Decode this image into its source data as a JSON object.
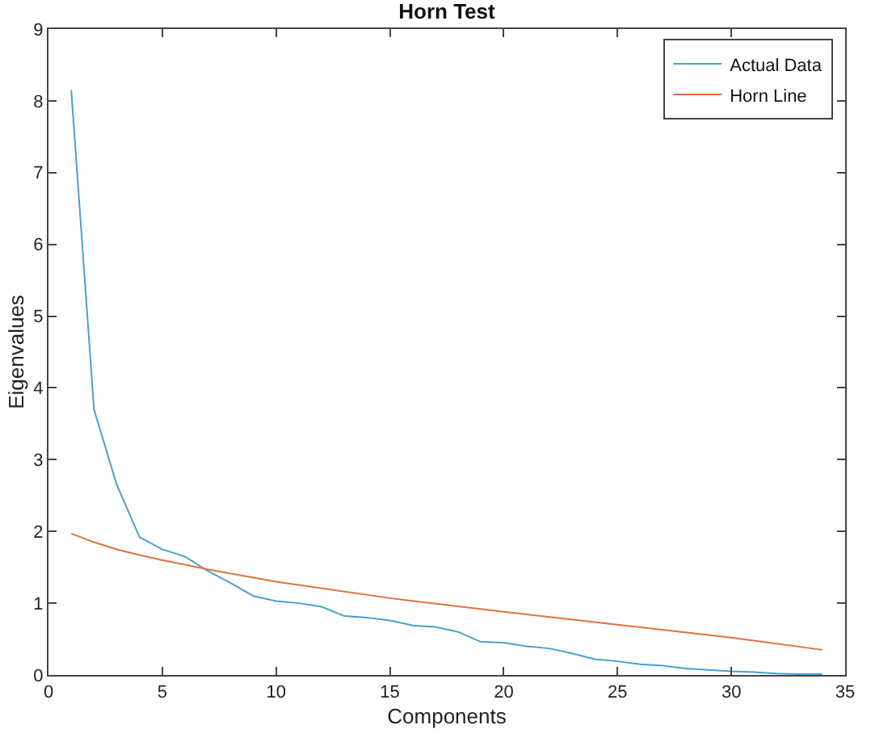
{
  "chart_data": {
    "type": "line",
    "title": "Horn Test",
    "xlabel": "Components",
    "ylabel": "Eigenvalues",
    "xlim": [
      0,
      35
    ],
    "xticks": [
      0,
      5,
      10,
      15,
      20,
      25,
      30,
      35
    ],
    "ylim": [
      0,
      9
    ],
    "yticks": [
      0,
      1,
      2,
      3,
      4,
      5,
      6,
      7,
      8,
      9
    ],
    "legend": "top right",
    "marker": "none",
    "line_style": "solid",
    "series": [
      {
        "name": "Actual Data",
        "color": "#4a9fd0",
        "x": [
          1,
          2,
          3,
          4,
          5,
          6,
          7,
          8,
          9,
          10,
          11,
          12,
          13,
          14,
          15,
          16,
          17,
          18,
          19,
          20,
          21,
          22,
          23,
          24,
          25,
          26,
          27,
          28,
          29,
          30,
          31,
          32,
          33,
          34
        ],
        "values": [
          8.15,
          3.7,
          2.65,
          1.92,
          1.75,
          1.65,
          1.45,
          1.28,
          1.1,
          1.03,
          1.0,
          0.95,
          0.82,
          0.8,
          0.76,
          0.69,
          0.67,
          0.6,
          0.46,
          0.45,
          0.4,
          0.37,
          0.3,
          0.22,
          0.19,
          0.15,
          0.13,
          0.09,
          0.07,
          0.05,
          0.04,
          0.02,
          0.01,
          0.01
        ]
      },
      {
        "name": "Horn Line",
        "color": "#e0703f",
        "x": [
          1,
          2,
          3,
          4,
          5,
          7,
          10,
          15,
          20,
          25,
          30,
          34
        ],
        "values": [
          1.97,
          1.85,
          1.75,
          1.67,
          1.6,
          1.47,
          1.3,
          1.07,
          0.88,
          0.7,
          0.52,
          0.35
        ]
      }
    ]
  }
}
